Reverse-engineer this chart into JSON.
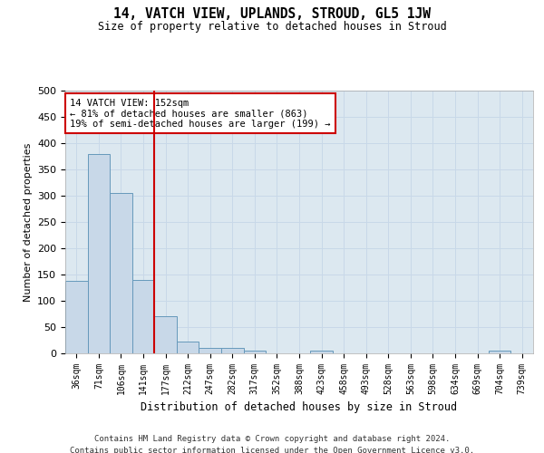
{
  "title": "14, VATCH VIEW, UPLANDS, STROUD, GL5 1JW",
  "subtitle": "Size of property relative to detached houses in Stroud",
  "xlabel": "Distribution of detached houses by size in Stroud",
  "ylabel": "Number of detached properties",
  "bin_labels": [
    "36sqm",
    "71sqm",
    "106sqm",
    "141sqm",
    "177sqm",
    "212sqm",
    "247sqm",
    "282sqm",
    "317sqm",
    "352sqm",
    "388sqm",
    "423sqm",
    "458sqm",
    "493sqm",
    "528sqm",
    "563sqm",
    "598sqm",
    "634sqm",
    "669sqm",
    "704sqm",
    "739sqm"
  ],
  "bar_values": [
    138,
    379,
    305,
    140,
    70,
    23,
    10,
    10,
    5,
    0,
    0,
    5,
    0,
    0,
    0,
    0,
    0,
    0,
    0,
    5,
    0
  ],
  "bar_color": "#c8d8e8",
  "bar_edge_color": "#6699bb",
  "bar_edge_width": 0.7,
  "vline_x_idx": 3,
  "vline_color": "#cc0000",
  "annotation_line1": "14 VATCH VIEW: 152sqm",
  "annotation_line2": "← 81% of detached houses are smaller (863)",
  "annotation_line3": "19% of semi-detached houses are larger (199) →",
  "annotation_box_color": "#ffffff",
  "annotation_box_edge": "#cc0000",
  "ylim": [
    0,
    500
  ],
  "yticks": [
    0,
    50,
    100,
    150,
    200,
    250,
    300,
    350,
    400,
    450,
    500
  ],
  "grid_color": "#c8d8e8",
  "background_color": "#dce8f0",
  "footer_line1": "Contains HM Land Registry data © Crown copyright and database right 2024.",
  "footer_line2": "Contains public sector information licensed under the Open Government Licence v3.0."
}
